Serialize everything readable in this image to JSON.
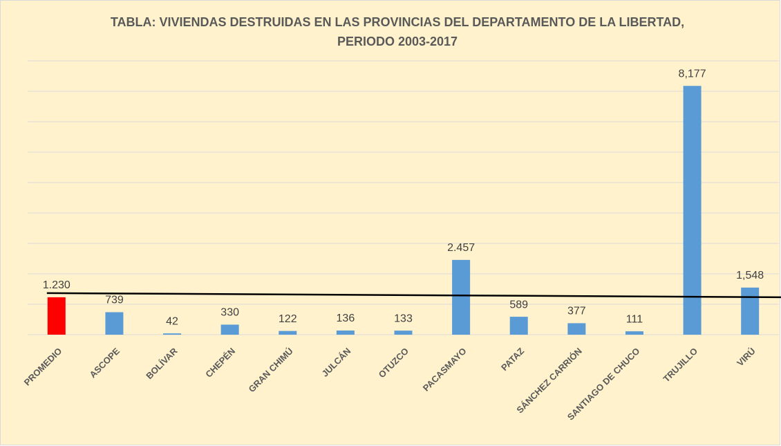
{
  "chart_data": {
    "type": "bar",
    "title": [
      "TABLA: VIVIENDAS DESTRUIDAS  EN LAS PROVINCIAS DEL DEPARTAMENTO DE LA LIBERTAD,",
      "PERIODO 2003-2017"
    ],
    "categories": [
      "PROMEDIO",
      "ASCOPE",
      "BOLÍVAR",
      "CHEPÉN",
      "GRAN CHIMÚ",
      "JULCÁN",
      "OTUZCO",
      "PACASMAYO",
      "PATAZ",
      "SÁNCHEZ CARRIÓN",
      "SANTIAGO DE CHUCO",
      "TRUJILLO",
      "VIRÚ"
    ],
    "values": [
      1230,
      739,
      42,
      330,
      122,
      136,
      133,
      2457,
      589,
      377,
      111,
      8177,
      1548
    ],
    "value_labels": [
      "1.230",
      "739",
      "42",
      "330",
      "122",
      "136",
      "133",
      "2.457",
      "589",
      "377",
      "111",
      "8,177",
      "1,548"
    ],
    "colors": [
      "#ff0000",
      "#5b9bd5",
      "#5b9bd5",
      "#5b9bd5",
      "#5b9bd5",
      "#5b9bd5",
      "#5b9bd5",
      "#5b9bd5",
      "#5b9bd5",
      "#5b9bd5",
      "#5b9bd5",
      "#5b9bd5",
      "#5b9bd5"
    ],
    "ylim": [
      0,
      9000
    ],
    "yticks": [
      0,
      1000,
      2000,
      3000,
      4000,
      5000,
      6000,
      7000,
      8000,
      9000
    ],
    "grid": true
  }
}
